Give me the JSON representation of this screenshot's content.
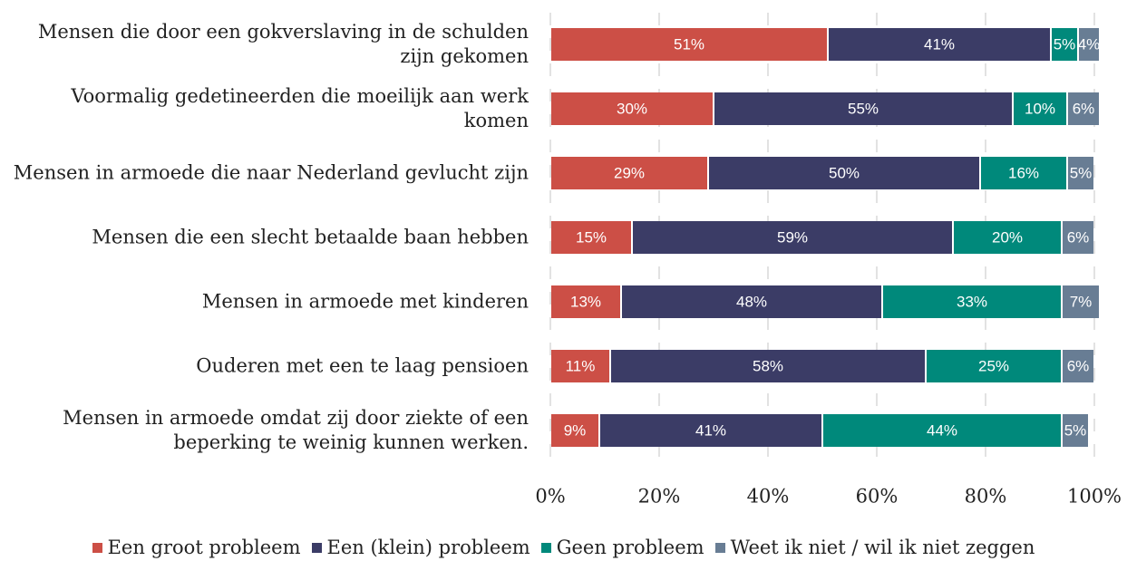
{
  "chart_data": {
    "type": "stacked-bar-horizontal",
    "categories": [
      "Mensen die door een gokverslaving in de schulden zijn gekomen",
      "Voormalig gedetineerden die moeilijk aan werk komen",
      "Mensen in armoede die naar Nederland gevlucht zijn",
      "Mensen die een slecht betaalde baan hebben",
      "Mensen in armoede met kinderen",
      "Ouderen met een te laag pensioen",
      "Mensen in armoede omdat zij door ziekte of een beperking te weinig kunnen werken."
    ],
    "series": [
      {
        "name": "Een groot probleem",
        "color": "#cc4f46",
        "values": [
          51,
          30,
          29,
          15,
          13,
          11,
          9
        ],
        "value_labels": [
          "51%",
          "30%",
          "29%",
          "15%",
          "13%",
          "11%",
          "9%"
        ]
      },
      {
        "name": "Een (klein) probleem",
        "color": "#3b3c66",
        "values": [
          41,
          55,
          50,
          59,
          48,
          58,
          41
        ],
        "value_labels": [
          "41%",
          "55%",
          "50%",
          "59%",
          "48%",
          "58%",
          "41%"
        ]
      },
      {
        "name": "Geen probleem",
        "color": "#00897b",
        "values": [
          5,
          10,
          16,
          20,
          33,
          25,
          44
        ],
        "value_labels": [
          "5%",
          "10%",
          "16%",
          "20%",
          "33%",
          "25%",
          "44%"
        ]
      },
      {
        "name": "Weet ik niet / wil ik niet zeggen",
        "color": "#687d94",
        "values": [
          4,
          6,
          5,
          6,
          7,
          6,
          5
        ],
        "value_labels": [
          "4%",
          "6%",
          "5%",
          "6%",
          "7%",
          "6%",
          "5%"
        ]
      }
    ],
    "xlim": [
      0,
      100
    ],
    "xticks": [
      {
        "value": 0,
        "label": "0%"
      },
      {
        "value": 20,
        "label": "20%"
      },
      {
        "value": 40,
        "label": "40%"
      },
      {
        "value": 60,
        "label": "60%"
      },
      {
        "value": 80,
        "label": "80%"
      },
      {
        "value": 100,
        "label": "100%"
      }
    ],
    "grid": true,
    "legend": "bottom"
  }
}
